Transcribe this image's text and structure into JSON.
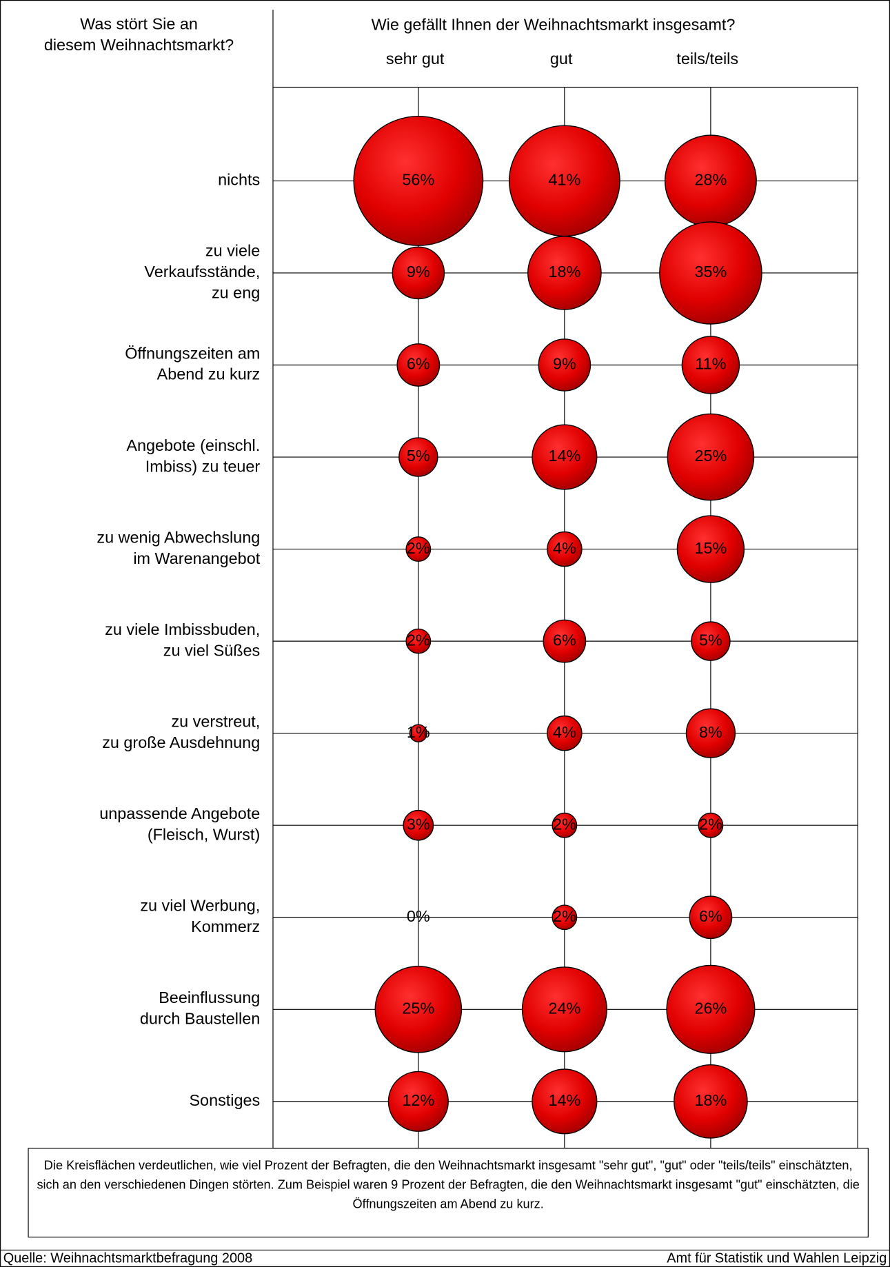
{
  "chart_data": {
    "type": "bubble",
    "row_header": "Was stört Sie an diesem Weihnachtsmarkt?",
    "column_header": "Wie gefällt Ihnen der Weihnachtsmarkt insgesamt?",
    "categories": [
      "nichts",
      "zu viele\nVerkaufsstände,\nzu eng",
      "Öffnungszeiten am\nAbend zu kurz",
      "Angebote (einschl.\nImbiss) zu teuer",
      "zu wenig Abwechslung\nim Warenangebot",
      "zu viele Imbissbuden,\nzu viel Süßes",
      "zu verstreut,\nzu große Ausdehnung",
      "unpassende Angebote\n(Fleisch, Wurst)",
      "zu viel Werbung,\nKommerz",
      "Beeinflussung\ndurch Baustellen",
      "Sonstiges"
    ],
    "series": [
      {
        "name": "sehr gut",
        "color": "#e00000",
        "values": [
          56,
          9,
          6,
          5,
          2,
          2,
          1,
          3,
          0,
          25,
          12
        ],
        "value_labels": [
          "56%",
          "9%",
          "6%",
          "5%",
          "2%",
          "2%",
          "1%",
          "3%",
          "0%",
          "25%",
          "12%"
        ]
      },
      {
        "name": "gut",
        "color": "#e00000",
        "values": [
          41,
          18,
          9,
          14,
          4,
          6,
          4,
          2,
          2,
          24,
          14
        ],
        "value_labels": [
          "41%",
          "18%",
          "9%",
          "14%",
          "4%",
          "6%",
          "4%",
          "2%",
          "2%",
          "24%",
          "14%"
        ]
      },
      {
        "name": "teils/teils",
        "color": "#e00000",
        "values": [
          28,
          35,
          11,
          25,
          15,
          5,
          8,
          2,
          6,
          26,
          18
        ],
        "value_labels": [
          "28%",
          "35%",
          "11%",
          "25%",
          "15%",
          "5%",
          "8%",
          "2%",
          "6%",
          "26%",
          "18%"
        ]
      }
    ],
    "note": "Die Kreisflächen verdeutlichen, wie viel Prozent der Befragten, die den Weihnachtsmarkt insgesamt \"sehr gut\", \"gut\" oder \"teils/teils\" einschätzten, sich an den verschiedenen Dingen störten. Zum Beispiel waren 9 Prozent der Befragten, die den Weihnachtsmarkt insgesamt \"gut\" einschätzten, die Öffnungszeiten am Abend zu kurz.",
    "source": "Quelle: Weihnachtsmarktbefragung 2008",
    "publisher": "Amt für Statistik und Wahlen Leipzig"
  }
}
